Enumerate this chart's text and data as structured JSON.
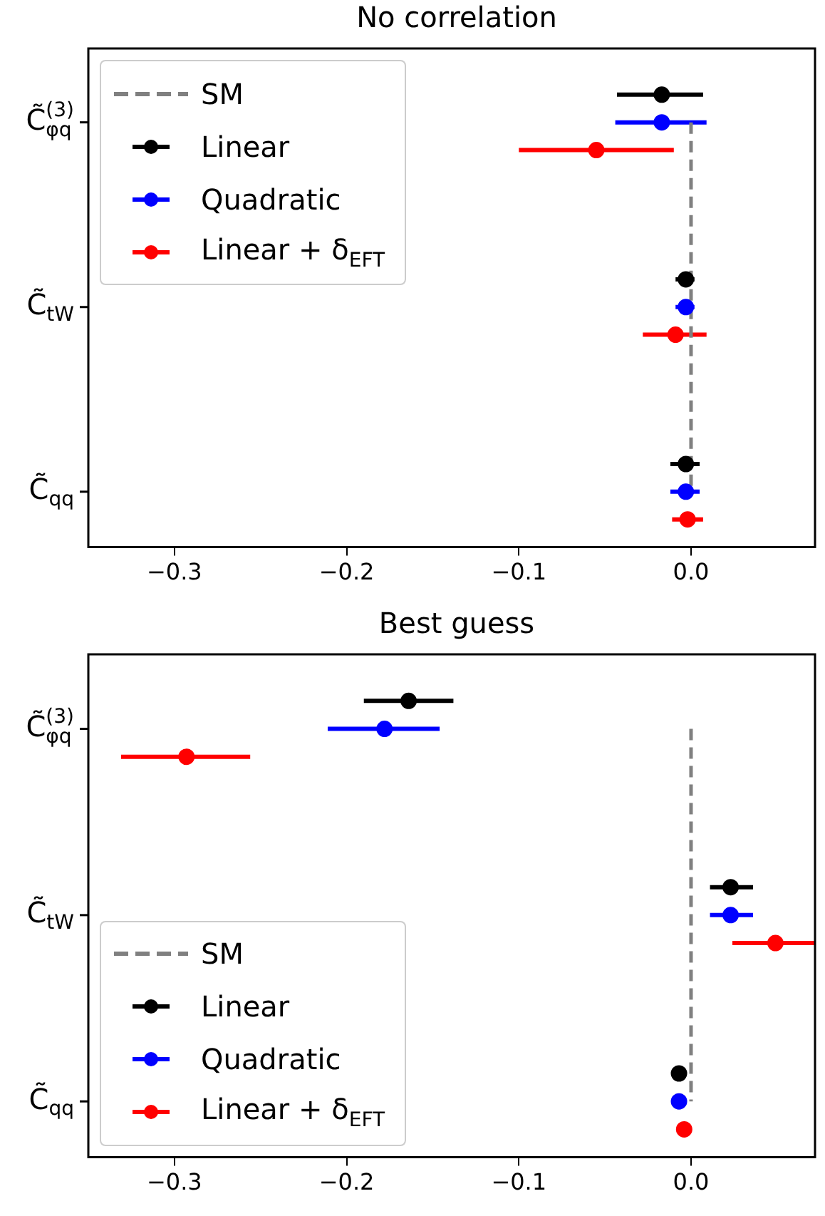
{
  "chart_data": [
    {
      "type": "scatter",
      "title": "No correlation",
      "orientation": "horizontal",
      "categories": [
        "C̃$_{φq}$$^{(3)}$",
        "C̃$_{tW}$",
        "C̃$_{qq}$"
      ],
      "xlim": [
        -0.35,
        0.072
      ],
      "xticks": [
        {
          "value": -0.3,
          "label": "−0.3"
        },
        {
          "value": -0.2,
          "label": "−0.2"
        },
        {
          "value": -0.1,
          "label": "−0.1"
        },
        {
          "value": 0,
          "label": "0.0"
        }
      ],
      "legend": "top left",
      "marker": "circle",
      "series": [
        {
          "name": "SM",
          "type": "line",
          "line_style": "dashed",
          "marker": "none",
          "color": "#808080",
          "values": [
            0,
            0,
            0
          ]
        },
        {
          "name": "Linear",
          "color": "#000000",
          "values": [
            -0.017,
            -0.003,
            -0.003
          ],
          "errors": [
            [
              -0.043,
              0.007
            ],
            [
              -0.009,
              0.002
            ],
            [
              -0.012,
              0.005
            ]
          ]
        },
        {
          "name": "Quadratic",
          "color": "#0000ff",
          "values": [
            -0.017,
            -0.003,
            -0.003
          ],
          "errors": [
            [
              -0.044,
              0.009
            ],
            [
              -0.009,
              0.002
            ],
            [
              -0.012,
              0.005
            ]
          ]
        },
        {
          "name": "Linear + δ$_{EFT}$",
          "color": "#ff0000",
          "values": [
            -0.055,
            -0.009,
            -0.002
          ],
          "errors": [
            [
              -0.1,
              -0.01
            ],
            [
              -0.028,
              0.009
            ],
            [
              -0.011,
              0.007
            ]
          ]
        }
      ]
    },
    {
      "type": "scatter",
      "title": "Best guess",
      "orientation": "horizontal",
      "categories": [
        "C̃$_{φq}$$^{(3)}$",
        "C̃$_{tW}$",
        "C̃$_{qq}$"
      ],
      "xlim": [
        -0.35,
        0.072
      ],
      "xticks": [
        {
          "value": -0.3,
          "label": "−0.3"
        },
        {
          "value": -0.2,
          "label": "−0.2"
        },
        {
          "value": -0.1,
          "label": "−0.1"
        },
        {
          "value": 0,
          "label": "0.0"
        }
      ],
      "legend": "bottom left",
      "marker": "circle",
      "series": [
        {
          "name": "SM",
          "type": "line",
          "line_style": "dashed",
          "marker": "none",
          "color": "#808080",
          "values": [
            0,
            0,
            0
          ]
        },
        {
          "name": "Linear",
          "color": "#000000",
          "values": [
            -0.164,
            0.023,
            -0.007
          ],
          "errors": [
            [
              -0.19,
              -0.138
            ],
            [
              0.011,
              0.036
            ],
            null
          ]
        },
        {
          "name": "Quadratic",
          "color": "#0000ff",
          "values": [
            -0.178,
            0.023,
            -0.007
          ],
          "errors": [
            [
              -0.211,
              -0.146
            ],
            [
              0.011,
              0.036
            ],
            null
          ]
        },
        {
          "name": "Linear + δ$_{EFT}$",
          "color": "#ff0000",
          "values": [
            -0.293,
            0.049,
            -0.004
          ],
          "errors": [
            [
              -0.331,
              -0.256
            ],
            [
              0.024,
              0.072
            ],
            null
          ]
        }
      ]
    }
  ]
}
